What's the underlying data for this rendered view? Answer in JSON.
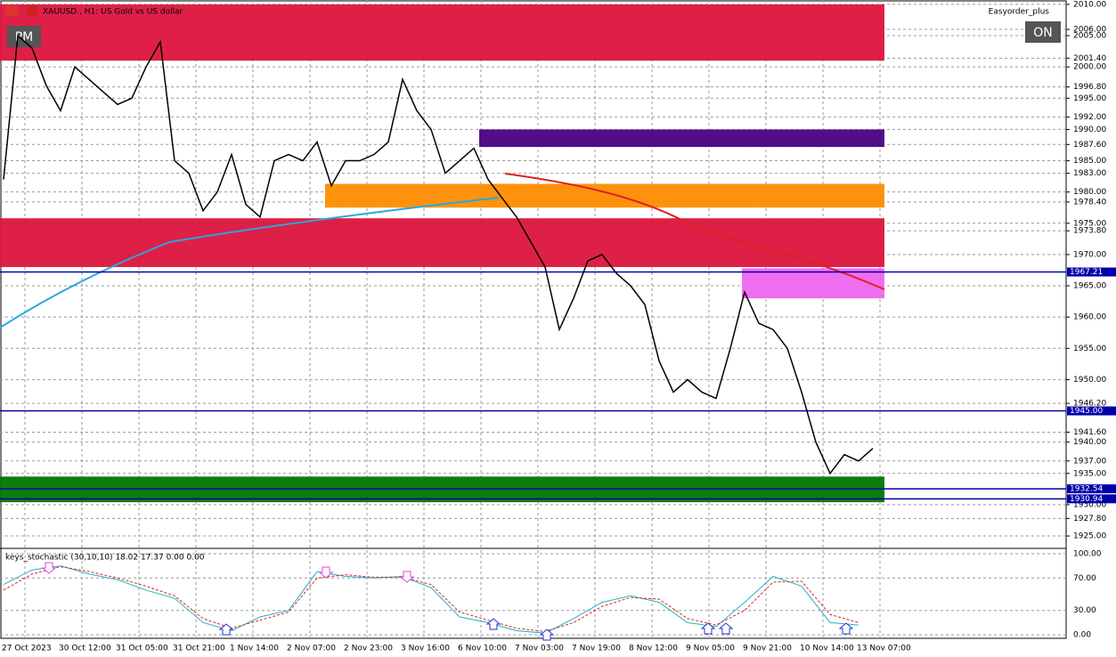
{
  "header": {
    "symbol": "XAUUSD., H1: US Gold vs US dollar",
    "expert": "Easyorder_plus",
    "left_button": "PM",
    "right_button": "ON"
  },
  "chart_data": {
    "type": "line",
    "color": "#000000",
    "close": [
      1982,
      2005,
      2003,
      1997,
      1993,
      2000,
      1998,
      1996,
      1994,
      1995,
      2000,
      2004,
      1985,
      1983,
      1977,
      1980,
      1986,
      1978,
      1976,
      1985,
      1986,
      1985,
      1988,
      1981,
      1985,
      1985,
      1986,
      1988,
      1998,
      1993,
      1990,
      1983,
      1985,
      1987,
      1982,
      1979,
      1976,
      1972,
      1968,
      1958,
      1963,
      1969,
      1970,
      1967,
      1965,
      1962,
      1953,
      1948,
      1950,
      1948,
      1947,
      1955,
      1964,
      1959,
      1958,
      1955,
      1948,
      1940,
      1935,
      1938,
      1937,
      1939
    ],
    "ylim": [
      1923.3,
      2010.7
    ],
    "yticks": [
      {
        "value": 2010,
        "label": "2010.00"
      },
      {
        "value": 2006,
        "label": "2006.00"
      },
      {
        "value": 2005,
        "label": "2005.00"
      },
      {
        "value": 2001.4,
        "label": "2001.40"
      },
      {
        "value": 2000,
        "label": "2000.00"
      },
      {
        "value": 1996.8,
        "label": "1996.80"
      },
      {
        "value": 1995,
        "label": "1995.00"
      },
      {
        "value": 1992,
        "label": "1992.00"
      },
      {
        "value": 1990,
        "label": "1990.00"
      },
      {
        "value": 1987.6,
        "label": "1987.60"
      },
      {
        "value": 1985,
        "label": "1985.00"
      },
      {
        "value": 1983,
        "label": "1983.00"
      },
      {
        "value": 1980,
        "label": "1980.00"
      },
      {
        "value": 1978.4,
        "label": "1978.40"
      },
      {
        "value": 1975,
        "label": "1975.00"
      },
      {
        "value": 1973.8,
        "label": "1973.80"
      },
      {
        "value": 1970,
        "label": "1970.00"
      },
      {
        "value": 1965,
        "label": "1965.00"
      },
      {
        "value": 1960,
        "label": "1960.00"
      },
      {
        "value": 1955,
        "label": "1955.00"
      },
      {
        "value": 1950,
        "label": "1950.00"
      },
      {
        "value": 1946.2,
        "label": "1946.20"
      },
      {
        "value": 1941.6,
        "label": "1941.60"
      },
      {
        "value": 1940,
        "label": "1940.00"
      },
      {
        "value": 1937,
        "label": "1937.00"
      },
      {
        "value": 1935,
        "label": "1935.00"
      },
      {
        "value": 1930,
        "label": "1930.00"
      },
      {
        "value": 1927.8,
        "label": "1927.80"
      },
      {
        "value": 1925,
        "label": "1925.00"
      }
    ],
    "zones": [
      {
        "top": 2010,
        "bottom": 2001,
        "color": "#dc143c"
      },
      {
        "top": 1975.8,
        "bottom": 1968,
        "color": "#dc143c"
      },
      {
        "top": 1990,
        "bottom": 1987.2,
        "color": "#4b0082"
      },
      {
        "top": 1981.3,
        "bottom": 1977.5,
        "color": "#ff8c00"
      },
      {
        "top": 1967.8,
        "bottom": 1963,
        "color": "#ee66ee"
      },
      {
        "top": 1934.5,
        "bottom": 1930.4,
        "color": "#007700"
      }
    ],
    "levels": [
      {
        "value": 1967.21,
        "label": "1967.21"
      },
      {
        "value": 1945,
        "label": "1945.00"
      },
      {
        "value": 1932.54,
        "label": "1932.54"
      },
      {
        "value": 1930.94,
        "label": "1930.94"
      }
    ],
    "level_color": "#0000aa",
    "time_labels": [
      "27 Oct 2023",
      "30 Oct 12:00",
      "31 Oct 05:00",
      "31 Oct 21:00",
      "1 Nov 14:00",
      "2 Nov 07:00",
      "2 Nov 23:00",
      "3 Nov 16:00",
      "6 Nov 10:00",
      "7 Nov 03:00",
      "7 Nov 19:00",
      "8 Nov 12:00",
      "9 Nov 05:00",
      "9 Nov 21:00",
      "10 Nov 14:00",
      "13 Nov 07:00"
    ]
  },
  "stochastic": {
    "title": "keys_stochastic (30,10,10) 18.02 17.37 0.00 0.00",
    "ylim": [
      0,
      100
    ],
    "yticks": [
      {
        "value": 100,
        "label": "100.00"
      },
      {
        "value": 70,
        "label": "70.00"
      },
      {
        "value": 30,
        "label": "30.00"
      },
      {
        "value": 0,
        "label": "0.00"
      }
    ],
    "series": [
      {
        "color": "#20b2c8",
        "values": [
          62,
          80,
          85,
          75,
          68,
          55,
          45,
          15,
          5,
          22,
          30,
          78,
          72,
          70,
          72,
          58,
          22,
          15,
          5,
          2,
          20,
          40,
          48,
          40,
          15,
          10,
          40,
          72,
          60,
          15,
          12
        ]
      },
      {
        "color": "#dd2222",
        "values": [
          55,
          75,
          84,
          78,
          70,
          60,
          48,
          20,
          8,
          18,
          28,
          70,
          74,
          71,
          71,
          62,
          28,
          18,
          8,
          4,
          15,
          35,
          46,
          44,
          20,
          12,
          30,
          65,
          66,
          25,
          15
        ]
      }
    ]
  }
}
